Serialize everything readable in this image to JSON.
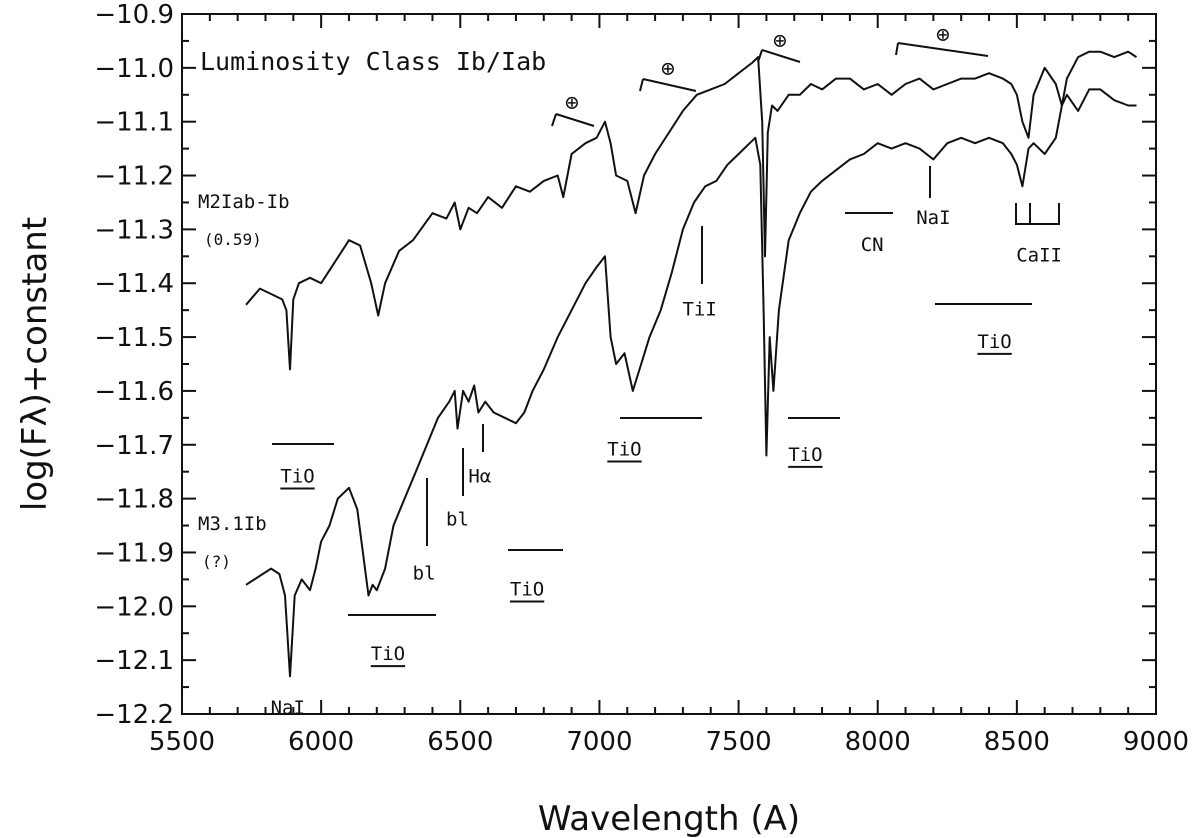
{
  "chart_data": {
    "type": "line",
    "title": "Luminosity Class Ib/Iab",
    "xlabel": "Wavelength (A)",
    "ylabel": "log(Fλ)+constant",
    "xlim": [
      5500,
      9000
    ],
    "ylim": [
      -12.2,
      -10.9
    ],
    "xticks": [
      5500,
      6000,
      6500,
      7000,
      7500,
      8000,
      8500,
      9000
    ],
    "xtick_labels": [
      "5500",
      "6000",
      "6500",
      "7000",
      "7500",
      "8000",
      "8500",
      "9000"
    ],
    "yticks": [
      -10.9,
      -11.0,
      -11.1,
      -11.2,
      -11.3,
      -11.4,
      -11.5,
      -11.6,
      -11.7,
      -11.8,
      -11.9,
      -12.0,
      -12.1,
      -12.2
    ],
    "ytick_labels": [
      "−10.9",
      "−11.0",
      "−11.1",
      "−11.2",
      "−11.3",
      "−11.4",
      "−11.5",
      "−11.6",
      "−11.7",
      "−11.8",
      "−11.9",
      "−12.0",
      "−12.1",
      "−12.2"
    ],
    "grid": false,
    "series": [
      {
        "name": "M2Iab-Ib",
        "sub": "(0.59)",
        "x": [
          5730,
          5780,
          5820,
          5860,
          5875,
          5888,
          5900,
          5920,
          5960,
          6000,
          6050,
          6100,
          6140,
          6180,
          6205,
          6230,
          6280,
          6330,
          6400,
          6450,
          6480,
          6500,
          6530,
          6560,
          6600,
          6650,
          6700,
          6750,
          6800,
          6850,
          6870,
          6900,
          6950,
          6990,
          7020,
          7040,
          7060,
          7100,
          7130,
          7160,
          7200,
          7250,
          7300,
          7350,
          7400,
          7450,
          7500,
          7550,
          7570,
          7585,
          7595,
          7605,
          7620,
          7640,
          7680,
          7720,
          7760,
          7800,
          7850,
          7900,
          7950,
          8000,
          8050,
          8100,
          8150,
          8200,
          8250,
          8300,
          8350,
          8400,
          8450,
          8480,
          8500,
          8520,
          8542,
          8560,
          8600,
          8640,
          8662,
          8680,
          8720,
          8760,
          8800,
          8850,
          8900,
          8930
        ],
        "y": [
          -11.44,
          -11.41,
          -11.42,
          -11.43,
          -11.45,
          -11.56,
          -11.43,
          -11.4,
          -11.39,
          -11.4,
          -11.36,
          -11.32,
          -11.33,
          -11.4,
          -11.46,
          -11.4,
          -11.34,
          -11.32,
          -11.27,
          -11.28,
          -11.25,
          -11.3,
          -11.26,
          -11.27,
          -11.24,
          -11.26,
          -11.22,
          -11.23,
          -11.21,
          -11.2,
          -11.24,
          -11.16,
          -11.14,
          -11.13,
          -11.1,
          -11.14,
          -11.2,
          -11.21,
          -11.27,
          -11.2,
          -11.16,
          -11.12,
          -11.08,
          -11.05,
          -11.04,
          -11.03,
          -11.01,
          -10.99,
          -10.98,
          -11.1,
          -11.35,
          -11.12,
          -11.07,
          -11.08,
          -11.05,
          -11.05,
          -11.03,
          -11.04,
          -11.02,
          -11.02,
          -11.04,
          -11.03,
          -11.05,
          -11.03,
          -11.02,
          -11.04,
          -11.03,
          -11.02,
          -11.02,
          -11.01,
          -11.02,
          -11.03,
          -11.05,
          -11.1,
          -11.13,
          -11.05,
          -11.0,
          -11.03,
          -11.07,
          -11.02,
          -10.98,
          -10.97,
          -10.97,
          -10.98,
          -10.97,
          -10.98
        ]
      },
      {
        "name": "M3.1Ib",
        "sub": "(?)",
        "x": [
          5730,
          5760,
          5790,
          5820,
          5850,
          5870,
          5888,
          5905,
          5930,
          5960,
          5980,
          6000,
          6030,
          6060,
          6100,
          6130,
          6150,
          6170,
          6185,
          6200,
          6230,
          6260,
          6300,
          6340,
          6380,
          6420,
          6460,
          6480,
          6490,
          6510,
          6530,
          6550,
          6565,
          6590,
          6620,
          6660,
          6700,
          6730,
          6760,
          6800,
          6850,
          6900,
          6950,
          6990,
          7020,
          7040,
          7060,
          7090,
          7120,
          7150,
          7180,
          7220,
          7260,
          7300,
          7340,
          7380,
          7420,
          7460,
          7500,
          7540,
          7560,
          7578,
          7590,
          7600,
          7612,
          7625,
          7645,
          7680,
          7720,
          7760,
          7800,
          7850,
          7900,
          7950,
          8000,
          8050,
          8100,
          8150,
          8200,
          8250,
          8300,
          8350,
          8400,
          8450,
          8480,
          8500,
          8520,
          8542,
          8560,
          8600,
          8640,
          8662,
          8680,
          8720,
          8760,
          8800,
          8850,
          8900,
          8930
        ],
        "y": [
          -11.96,
          -11.95,
          -11.94,
          -11.93,
          -11.94,
          -11.98,
          -12.13,
          -11.98,
          -11.95,
          -11.97,
          -11.93,
          -11.88,
          -11.85,
          -11.8,
          -11.78,
          -11.82,
          -11.9,
          -11.98,
          -11.96,
          -11.97,
          -11.93,
          -11.85,
          -11.8,
          -11.75,
          -11.7,
          -11.65,
          -11.62,
          -11.6,
          -11.67,
          -11.6,
          -11.62,
          -11.59,
          -11.64,
          -11.62,
          -11.64,
          -11.65,
          -11.66,
          -11.64,
          -11.6,
          -11.56,
          -11.5,
          -11.45,
          -11.4,
          -11.37,
          -11.35,
          -11.5,
          -11.55,
          -11.53,
          -11.6,
          -11.55,
          -11.5,
          -11.45,
          -11.38,
          -11.3,
          -11.25,
          -11.22,
          -11.21,
          -11.18,
          -11.16,
          -11.14,
          -11.13,
          -11.18,
          -11.45,
          -11.72,
          -11.5,
          -11.6,
          -11.45,
          -11.32,
          -11.27,
          -11.23,
          -11.21,
          -11.19,
          -11.17,
          -11.16,
          -11.14,
          -11.15,
          -11.14,
          -11.15,
          -11.17,
          -11.14,
          -11.13,
          -11.14,
          -11.13,
          -11.14,
          -11.16,
          -11.18,
          -11.22,
          -11.15,
          -11.14,
          -11.16,
          -11.13,
          -11.07,
          -11.05,
          -11.08,
          -11.04,
          -11.04,
          -11.06,
          -11.07,
          -11.07
        ]
      }
    ],
    "annotations": [
      {
        "text": "TiI",
        "x": 7360,
        "y": -11.46
      },
      {
        "text": "CN",
        "x": 7980,
        "y": -11.34
      },
      {
        "text": "NaI",
        "x": 8200,
        "y": -11.29
      },
      {
        "text": "CaII",
        "x": 8580,
        "y": -11.36
      },
      {
        "text": "TiO",
        "x": 8420,
        "y": -11.52
      },
      {
        "text": "TiO",
        "x": 5915,
        "y": -11.77
      },
      {
        "text": "TiO",
        "x": 7090,
        "y": -11.72
      },
      {
        "text": "TiO",
        "x": 7740,
        "y": -11.73
      },
      {
        "text": "Hα",
        "x": 6570,
        "y": -11.77
      },
      {
        "text": "bl",
        "x": 6490,
        "y": -11.85
      },
      {
        "text": "bl",
        "x": 6370,
        "y": -11.95
      },
      {
        "text": "TiO",
        "x": 6740,
        "y": -11.98
      },
      {
        "text": "TiO",
        "x": 6240,
        "y": -12.1
      },
      {
        "text": "NaI",
        "x": 5880,
        "y": -12.2
      }
    ],
    "telluric_symbol": "⊕"
  }
}
